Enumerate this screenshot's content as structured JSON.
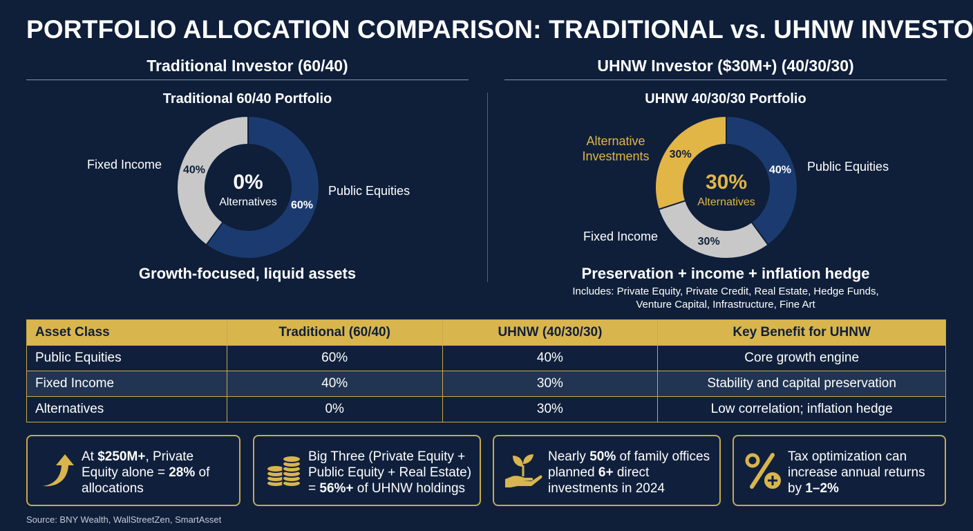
{
  "header": {
    "title": "PORTFOLIO ALLOCATION COMPARISON: TRADITIONAL vs. UHNW INVESTOR"
  },
  "colors": {
    "background": "#0f1f3a",
    "equities": "#1b3b70",
    "fixed_income": "#c8c8c8",
    "alternatives": "#e2b547",
    "gold_accent": "#c9a94e"
  },
  "chart_data": [
    {
      "type": "pie",
      "section_title": "Traditional Investor (60/40)",
      "title": "Traditional 60/40 Portfolio",
      "center_value": "0%",
      "center_label": "Alternatives",
      "slices": [
        {
          "label": "Public Equities",
          "value": 60,
          "display": "60%",
          "color": "#1b3b70"
        },
        {
          "label": "Fixed Income",
          "value": 40,
          "display": "40%",
          "color": "#c8c8c8"
        }
      ],
      "caption": "Growth-focused, liquid assets"
    },
    {
      "type": "pie",
      "section_title": "UHNW Investor ($30M+) (40/30/30)",
      "title": "UHNW 40/30/30 Portfolio",
      "center_value": "30%",
      "center_label": "Alternatives",
      "slices": [
        {
          "label": "Public Equities",
          "value": 40,
          "display": "40%",
          "color": "#1b3b70"
        },
        {
          "label": "Fixed Income",
          "value": 30,
          "display": "30%",
          "color": "#c8c8c8"
        },
        {
          "label": "Alternative Investments",
          "label_lines": [
            "Alternative",
            "Investments"
          ],
          "value": 30,
          "display": "30%",
          "color": "#e2b547"
        }
      ],
      "caption": "Preservation + income + inflation hedge",
      "includes": [
        "Includes: Private Equity, Private Credit, Real Estate, Hedge Funds,",
        "Venture Capital, Infrastructure, Fine Art"
      ]
    },
    {
      "type": "table",
      "columns": [
        "Asset Class",
        "Traditional (60/40)",
        "UHNW (40/30/30)",
        "Key Benefit for UHNW"
      ],
      "rows": [
        [
          "Public Equities",
          "60%",
          "40%",
          "Core growth engine"
        ],
        [
          "Fixed Income",
          "40%",
          "30%",
          "Stability and capital preservation"
        ],
        [
          "Alternatives",
          "0%",
          "30%",
          "Low correlation; inflation hedge"
        ]
      ]
    }
  ],
  "stats": [
    {
      "icon": "arrow-up-icon",
      "segments": [
        [
          "At ",
          false
        ],
        [
          "$250M+",
          true
        ],
        [
          ", Private Equity alone = ",
          false
        ],
        [
          "28%",
          true
        ],
        [
          " of allocations",
          false
        ]
      ]
    },
    {
      "icon": "coin-stack-icon",
      "segments": [
        [
          "Big Three (Private Equity + Public Equity + Real Estate) = ",
          false
        ],
        [
          "56%+",
          true
        ],
        [
          " of UHNW holdings",
          false
        ]
      ]
    },
    {
      "icon": "plant-hand-icon",
      "segments": [
        [
          "Nearly ",
          false
        ],
        [
          "50%",
          true
        ],
        [
          " of family offices planned ",
          false
        ],
        [
          "6+",
          true
        ],
        [
          " direct investments in 2024",
          false
        ]
      ]
    },
    {
      "icon": "percent-plus-icon",
      "segments": [
        [
          "Tax optimization can increase annual returns by ",
          false
        ],
        [
          "1–2%",
          true
        ]
      ]
    }
  ],
  "footer": {
    "source": "Source: BNY Wealth, WallStreetZen, SmartAsset"
  }
}
